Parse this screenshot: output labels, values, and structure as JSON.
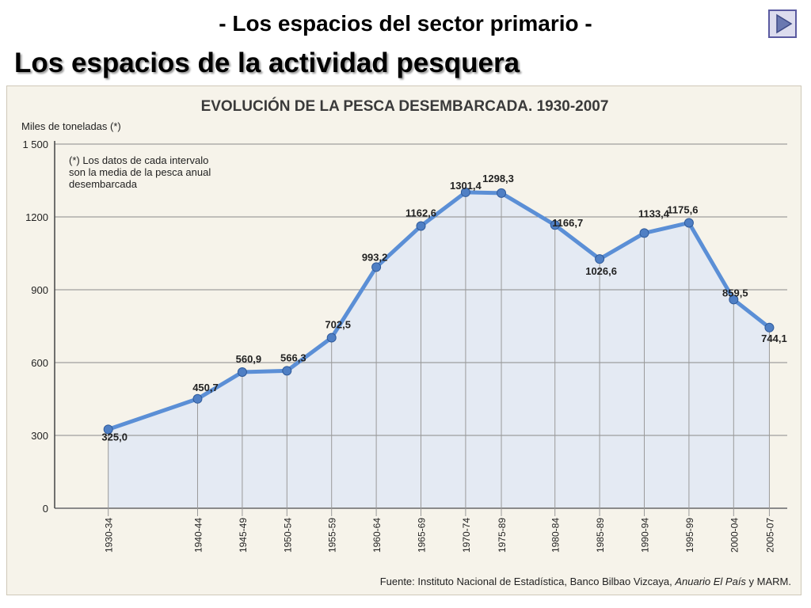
{
  "header": {
    "subtitle": "- Los espacios del sector primario -",
    "title": "Los espacios de la actividad pesquera",
    "next_icon": "play-arrow-icon"
  },
  "colors": {
    "line": "#5b8fd6",
    "marker": "#4f7fc4",
    "fill": "#dde7f6",
    "grid": "#8a8a8a",
    "panel": "#f6f3ea"
  },
  "chart_data": {
    "type": "line",
    "title": "EVOLUCIÓN DE LA PESCA DESEMBARCADA. 1930-2007",
    "ylabel": "Miles de toneladas (*)",
    "note": [
      "(*) Los datos de cada intervalo",
      "son la media de la pesca anual",
      "desembarcada"
    ],
    "source_prefix": "Fuente: Instituto Nacional de Estadística, Banco Bilbao Vizcaya, ",
    "source_italic": "Anuario El País",
    "source_suffix": " y MARM.",
    "categories": [
      "1930-34",
      "1940-44",
      "1945-49",
      "1950-54",
      "1955-59",
      "1960-64",
      "1965-69",
      "1970-74",
      "1975-89",
      "1980-84",
      "1985-89",
      "1990-94",
      "1995-99",
      "2000-04",
      "2005-07"
    ],
    "category_years": [
      1932,
      1942,
      1947,
      1952,
      1957,
      1962,
      1967,
      1972,
      1976,
      1982,
      1987,
      1992,
      1997,
      2002,
      2006
    ],
    "values": [
      325.0,
      450.7,
      560.9,
      566.3,
      702.5,
      993.2,
      1162.6,
      1301.4,
      1298.3,
      1166.7,
      1026.6,
      1133.4,
      1175.6,
      859.5,
      744.1
    ],
    "value_labels": [
      "325,0",
      "450,7",
      "560,9",
      "566,3",
      "702,5",
      "993,2",
      "1162,6",
      "1301,4",
      "1298,3",
      "1166,7",
      "1026,6",
      "1133,4",
      "1175,6",
      "859,5",
      "744,1"
    ],
    "ylim": [
      0,
      1500
    ],
    "yticks": [
      0,
      300,
      600,
      900,
      1200,
      1500
    ],
    "ytick_labels": [
      "0",
      "300",
      "600",
      "900",
      "1200",
      "1 500"
    ],
    "grid": true
  }
}
